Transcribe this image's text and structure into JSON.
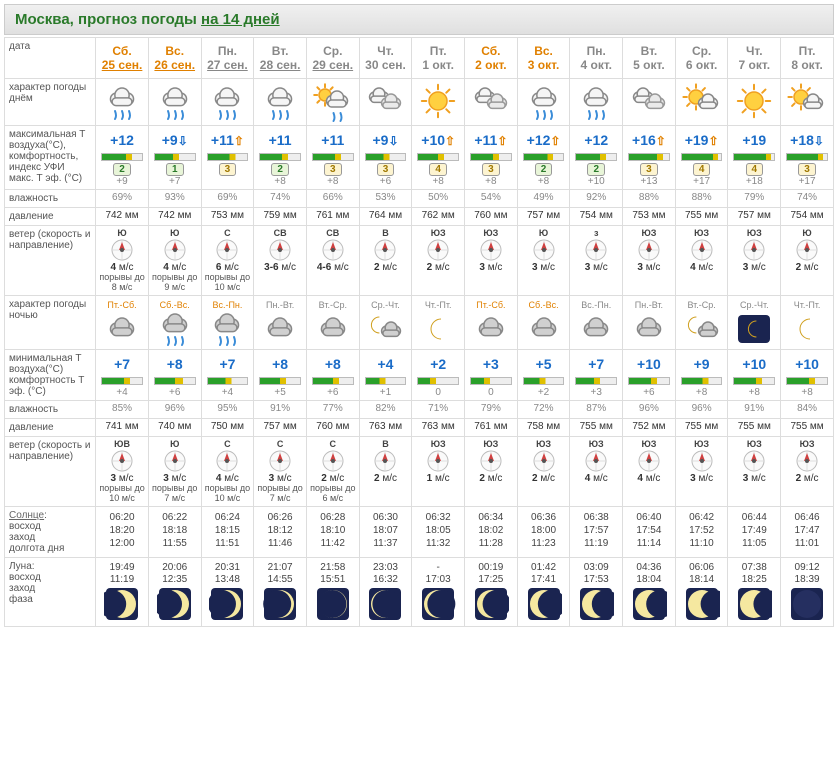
{
  "title_prefix": "Москва, прогноз погоды ",
  "title_link": "на 14 дней",
  "labels": {
    "date": "дата",
    "day_char": "характер погоды днём",
    "tmax": "максимальная Т воздуха(°C), комфортность, индекс УФИ макс. Т эф. (°C)",
    "hum": "влажность",
    "press": "давление",
    "wind": "ветер (скорость и направление)",
    "night_char": "характер погоды ночью",
    "tmin": "минимальная Т воздуха(°C) комфортность Т эф. (°C)",
    "hum2": "влажность",
    "press2": "давление",
    "wind2": "ветер (скорость и направление)",
    "sun": "Солнце: восход заход долгота дня",
    "moon": "Луна: восход заход фаза"
  },
  "cols": {
    "label_w": 90,
    "day_w": 52
  },
  "days": [
    {
      "dow": "Сб.",
      "date": "25 сен.",
      "link": true,
      "wknd": true,
      "icon_day": "rain",
      "tmax": "+12",
      "arr": "",
      "bar": [
        60,
        75
      ],
      "uvi": "2",
      "uvic": "g",
      "teff": "+9",
      "hum": "69%",
      "press": "742 мм",
      "wdir": "Ю",
      "wspd": "4 м/с",
      "wgust": "порывы до 8 м/с",
      "night_lbl": "Пт.-Сб.",
      "nl_wknd": true,
      "icon_night": "cloud",
      "tmin": "+7",
      "barN": [
        55,
        70
      ],
      "teffN": "+4",
      "humN": "85%",
      "pressN": "741 мм",
      "wdirN": "ЮВ",
      "wspdN": "3 м/с",
      "wgustN": "порывы до 10 м/с",
      "sun": [
        "06:20",
        "18:20",
        "12:00"
      ],
      "moon": [
        "19:49",
        "11:19"
      ],
      "phase": 0.85
    },
    {
      "dow": "Вс.",
      "date": "26 сен.",
      "link": true,
      "wknd": true,
      "icon_day": "rain",
      "tmax": "+9",
      "arr": "dn",
      "bar": [
        45,
        60
      ],
      "uvi": "1",
      "uvic": "g",
      "teff": "+7",
      "hum": "93%",
      "press": "742 мм",
      "wdir": "Ю",
      "wspd": "4 м/с",
      "wgust": "порывы до 9 м/с",
      "night_lbl": "Сб.-Вс.",
      "nl_wknd": true,
      "icon_night": "rain2",
      "tmin": "+8",
      "barN": [
        50,
        70
      ],
      "teffN": "+6",
      "humN": "96%",
      "pressN": "740 мм",
      "wdirN": "Ю",
      "wspdN": "3 м/с",
      "wgustN": "порывы до 7 м/с",
      "sun": [
        "06:22",
        "18:18",
        "11:55"
      ],
      "moon": [
        "20:06",
        "12:35"
      ],
      "phase": 0.75
    },
    {
      "dow": "Пн.",
      "date": "27 сен.",
      "link": true,
      "wknd": false,
      "icon_day": "rain",
      "tmax": "+11",
      "arr": "up",
      "bar": [
        55,
        70
      ],
      "uvi": "3",
      "uvic": "y",
      "teff": "",
      "hum": "69%",
      "press": "753 мм",
      "wdir": "С",
      "wspd": "6 м/с",
      "wgust": "порывы до 10 м/с",
      "night_lbl": "Вс.-Пн.",
      "nl_wknd": true,
      "icon_night": "rain2",
      "tmin": "+7",
      "barN": [
        45,
        60
      ],
      "teffN": "+4",
      "humN": "95%",
      "pressN": "750 мм",
      "wdirN": "С",
      "wspdN": "4 м/с",
      "wgustN": "порывы до 10 м/с",
      "sun": [
        "06:24",
        "18:15",
        "11:51"
      ],
      "moon": [
        "20:31",
        "13:48"
      ],
      "phase": 0.68
    },
    {
      "dow": "Вт.",
      "date": "28 сен.",
      "link": true,
      "wknd": false,
      "icon_day": "rain",
      "tmax": "+11",
      "arr": "",
      "bar": [
        55,
        70
      ],
      "uvi": "2",
      "uvic": "g",
      "teff": "+8",
      "hum": "74%",
      "press": "759 мм",
      "wdir": "СВ",
      "wspd": "3-6 м/с",
      "wgust": "",
      "night_lbl": "Пн.-Вт.",
      "nl_wknd": false,
      "icon_night": "cloud",
      "tmin": "+8",
      "barN": [
        50,
        65
      ],
      "teffN": "+5",
      "humN": "91%",
      "pressN": "757 мм",
      "wdirN": "С",
      "wspdN": "3 м/с",
      "wgustN": "порывы до 7 м/с",
      "sun": [
        "06:26",
        "18:12",
        "11:46"
      ],
      "moon": [
        "21:07",
        "14:55"
      ],
      "phase": 0.6
    },
    {
      "dow": "Ср.",
      "date": "29 сен.",
      "link": true,
      "wknd": false,
      "icon_day": "sunrain",
      "tmax": "+11",
      "arr": "",
      "bar": [
        55,
        70
      ],
      "uvi": "3",
      "uvic": "y",
      "teff": "+8",
      "hum": "66%",
      "press": "761 мм",
      "wdir": "СВ",
      "wspd": "4-6 м/с",
      "wgust": "",
      "night_lbl": "Вт.-Ср.",
      "nl_wknd": false,
      "icon_night": "cloud",
      "tmin": "+8",
      "barN": [
        50,
        65
      ],
      "teffN": "+6",
      "humN": "77%",
      "pressN": "760 мм",
      "wdirN": "С",
      "wspdN": "2 м/с",
      "wgustN": "порывы до 6 м/с",
      "sun": [
        "06:28",
        "18:10",
        "11:42"
      ],
      "moon": [
        "21:58",
        "15:51"
      ],
      "phase": 0.52
    },
    {
      "dow": "Чт.",
      "date": "30 сен.",
      "link": false,
      "wknd": false,
      "icon_day": "cloudy",
      "tmax": "+9",
      "arr": "dn",
      "bar": [
        45,
        60
      ],
      "uvi": "3",
      "uvic": "y",
      "teff": "+6",
      "hum": "53%",
      "press": "764 мм",
      "wdir": "В",
      "wspd": "2 м/с",
      "wgust": "",
      "night_lbl": "Ср.-Чт.",
      "nl_wknd": false,
      "icon_night": "mooncloud",
      "tmin": "+4",
      "barN": [
        35,
        50
      ],
      "teffN": "+1",
      "humN": "82%",
      "pressN": "763 мм",
      "wdirN": "В",
      "wspdN": "2 м/с",
      "wgustN": "",
      "sun": [
        "06:30",
        "18:07",
        "11:37"
      ],
      "moon": [
        "23:03",
        "16:32"
      ],
      "phase": 0.45
    },
    {
      "dow": "Пт.",
      "date": "1 окт.",
      "link": false,
      "wknd": false,
      "icon_day": "sun",
      "tmax": "+10",
      "arr": "up",
      "bar": [
        50,
        65
      ],
      "uvi": "4",
      "uvic": "y",
      "teff": "+8",
      "hum": "50%",
      "press": "762 мм",
      "wdir": "ЮЗ",
      "wspd": "2 м/с",
      "wgust": "",
      "night_lbl": "Чт.-Пт.",
      "nl_wknd": false,
      "icon_night": "moon",
      "tmin": "+2",
      "barN": [
        30,
        45
      ],
      "teffN": "0",
      "humN": "71%",
      "pressN": "763 мм",
      "wdirN": "ЮЗ",
      "wspdN": "1 м/с",
      "wgustN": "",
      "sun": [
        "06:32",
        "18:05",
        "11:32"
      ],
      "moon": [
        "-",
        "17:03"
      ],
      "phase": 0.38
    },
    {
      "dow": "Сб.",
      "date": "2 окт.",
      "link": false,
      "wknd": true,
      "icon_day": "cloudy",
      "tmax": "+11",
      "arr": "up",
      "bar": [
        55,
        70
      ],
      "uvi": "3",
      "uvic": "y",
      "teff": "+8",
      "hum": "54%",
      "press": "760 мм",
      "wdir": "ЮЗ",
      "wspd": "3 м/с",
      "wgust": "",
      "night_lbl": "Пт.-Сб.",
      "nl_wknd": true,
      "icon_night": "cloud",
      "tmin": "+3",
      "barN": [
        32,
        48
      ],
      "teffN": "0",
      "humN": "79%",
      "pressN": "761 мм",
      "wdirN": "ЮЗ",
      "wspdN": "2 м/с",
      "wgustN": "",
      "sun": [
        "06:34",
        "18:02",
        "11:28"
      ],
      "moon": [
        "00:19",
        "17:25"
      ],
      "phase": 0.3
    },
    {
      "dow": "Вс.",
      "date": "3 окт.",
      "link": false,
      "wknd": true,
      "icon_day": "rain",
      "tmax": "+12",
      "arr": "up",
      "bar": [
        60,
        75
      ],
      "uvi": "2",
      "uvic": "g",
      "teff": "+8",
      "hum": "49%",
      "press": "757 мм",
      "wdir": "Ю",
      "wspd": "3 м/с",
      "wgust": "",
      "night_lbl": "Сб.-Вс.",
      "nl_wknd": true,
      "icon_night": "cloud",
      "tmin": "+5",
      "barN": [
        40,
        55
      ],
      "teffN": "+2",
      "humN": "72%",
      "pressN": "758 мм",
      "wdirN": "ЮЗ",
      "wspdN": "2 м/с",
      "wgustN": "",
      "sun": [
        "06:36",
        "18:00",
        "11:23"
      ],
      "moon": [
        "01:42",
        "17:41"
      ],
      "phase": 0.22
    },
    {
      "dow": "Пн.",
      "date": "4 окт.",
      "link": false,
      "wknd": false,
      "icon_day": "rain",
      "tmax": "+12",
      "arr": "",
      "bar": [
        60,
        75
      ],
      "uvi": "2",
      "uvic": "g",
      "teff": "+10",
      "hum": "92%",
      "press": "754 мм",
      "wdir": "з",
      "wspd": "3 м/с",
      "wgust": "",
      "night_lbl": "Вс.-Пн.",
      "nl_wknd": false,
      "icon_night": "cloud",
      "tmin": "+7",
      "barN": [
        45,
        60
      ],
      "teffN": "+3",
      "humN": "87%",
      "pressN": "755 мм",
      "wdirN": "ЮЗ",
      "wspdN": "4 м/с",
      "wgustN": "",
      "sun": [
        "06:38",
        "17:57",
        "11:19"
      ],
      "moon": [
        "03:09",
        "17:53"
      ],
      "phase": 0.15
    },
    {
      "dow": "Вт.",
      "date": "5 окт.",
      "link": false,
      "wknd": false,
      "icon_day": "cloudy",
      "tmax": "+16",
      "arr": "up",
      "bar": [
        70,
        85
      ],
      "uvi": "3",
      "uvic": "y",
      "teff": "+13",
      "hum": "88%",
      "press": "753 мм",
      "wdir": "ЮЗ",
      "wspd": "3 м/с",
      "wgust": "",
      "night_lbl": "Пн.-Вт.",
      "nl_wknd": false,
      "icon_night": "cloud",
      "tmin": "+10",
      "barN": [
        55,
        70
      ],
      "teffN": "+6",
      "humN": "96%",
      "pressN": "752 мм",
      "wdirN": "ЮЗ",
      "wspdN": "4 м/с",
      "wgustN": "",
      "sun": [
        "06:40",
        "17:54",
        "11:14"
      ],
      "moon": [
        "04:36",
        "18:04"
      ],
      "phase": 0.1
    },
    {
      "dow": "Ср.",
      "date": "6 окт.",
      "link": false,
      "wknd": false,
      "icon_day": "suncloud",
      "tmax": "+19",
      "arr": "up",
      "bar": [
        80,
        92
      ],
      "uvi": "4",
      "uvic": "y",
      "teff": "+17",
      "hum": "88%",
      "press": "755 мм",
      "wdir": "ЮЗ",
      "wspd": "4 м/с",
      "wgust": "",
      "night_lbl": "Вт.-Ср.",
      "nl_wknd": false,
      "icon_night": "mooncloud",
      "tmin": "+9",
      "barN": [
        52,
        68
      ],
      "teffN": "+8",
      "humN": "96%",
      "pressN": "755 мм",
      "wdirN": "ЮЗ",
      "wspdN": "3 м/с",
      "wgustN": "",
      "sun": [
        "06:42",
        "17:52",
        "11:10"
      ],
      "moon": [
        "06:06",
        "18:14"
      ],
      "phase": 0.05
    },
    {
      "dow": "Чт.",
      "date": "7 окт.",
      "link": false,
      "wknd": false,
      "icon_day": "sun",
      "tmax": "+19",
      "arr": "",
      "bar": [
        80,
        92
      ],
      "uvi": "4",
      "uvic": "y",
      "teff": "+18",
      "hum": "79%",
      "press": "757 мм",
      "wdir": "ЮЗ",
      "wspd": "3 м/с",
      "wgust": "",
      "night_lbl": "Ср.-Чт.",
      "nl_wknd": false,
      "icon_night": "clearnight",
      "tmin": "+10",
      "barN": [
        55,
        70
      ],
      "teffN": "+8",
      "humN": "91%",
      "pressN": "755 мм",
      "wdirN": "ЮЗ",
      "wspdN": "3 м/с",
      "wgustN": "",
      "sun": [
        "06:44",
        "17:49",
        "11:05"
      ],
      "moon": [
        "07:38",
        "18:25"
      ],
      "phase": 0.02
    },
    {
      "dow": "Пт.",
      "date": "8 окт.",
      "link": false,
      "wknd": false,
      "icon_day": "suncloud",
      "tmax": "+18",
      "arr": "dn",
      "bar": [
        78,
        90
      ],
      "uvi": "3",
      "uvic": "y",
      "teff": "+17",
      "hum": "74%",
      "press": "754 мм",
      "wdir": "Ю",
      "wspd": "2 м/с",
      "wgust": "",
      "night_lbl": "Чт.-Пт.",
      "nl_wknd": false,
      "icon_night": "moon",
      "tmin": "+10",
      "barN": [
        55,
        70
      ],
      "teffN": "+8",
      "humN": "84%",
      "pressN": "755 мм",
      "wdirN": "ЮЗ",
      "wspdN": "2 м/с",
      "wgustN": "",
      "sun": [
        "06:46",
        "17:47",
        "11:01"
      ],
      "moon": [
        "09:12",
        "18:39"
      ],
      "phase": 0.0
    }
  ]
}
